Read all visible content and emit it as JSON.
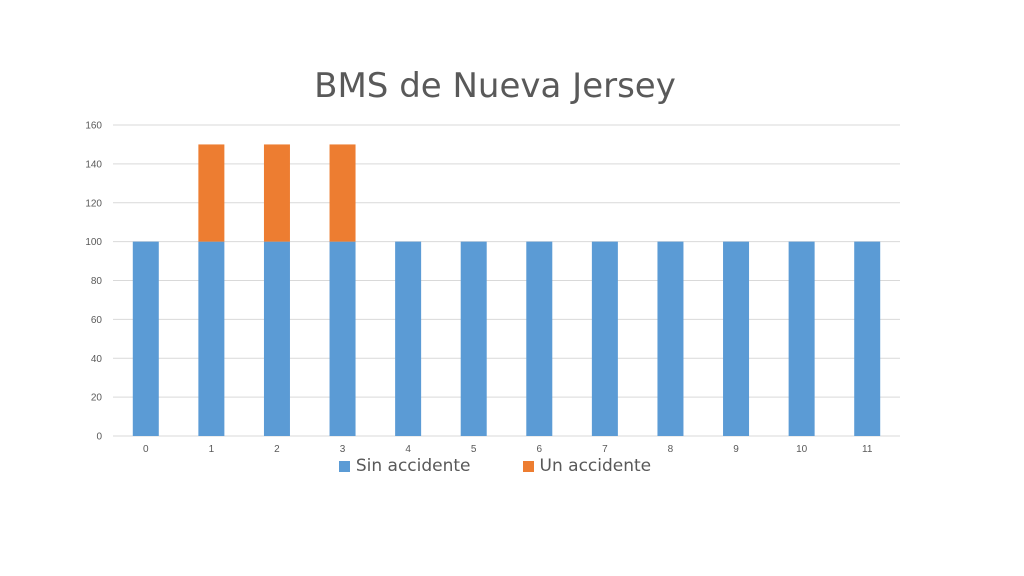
{
  "chart_data": {
    "type": "bar",
    "stacked": true,
    "title": "BMS de Nueva Jersey",
    "xlabel": "",
    "ylabel": "",
    "categories": [
      "0",
      "1",
      "2",
      "3",
      "4",
      "5",
      "6",
      "7",
      "8",
      "9",
      "10",
      "11"
    ],
    "series": [
      {
        "name": "Sin accidente",
        "color": "#5b9bd5",
        "values": [
          100,
          100,
          100,
          100,
          100,
          100,
          100,
          100,
          100,
          100,
          100,
          100
        ]
      },
      {
        "name": "Un accidente",
        "color": "#ed7d31",
        "values": [
          0,
          50,
          50,
          50,
          0,
          0,
          0,
          0,
          0,
          0,
          0,
          0
        ]
      }
    ],
    "ylim": [
      0,
      160
    ],
    "yticks": [
      0,
      20,
      40,
      60,
      80,
      100,
      120,
      140,
      160
    ],
    "grid": true,
    "legend": "bottom"
  }
}
